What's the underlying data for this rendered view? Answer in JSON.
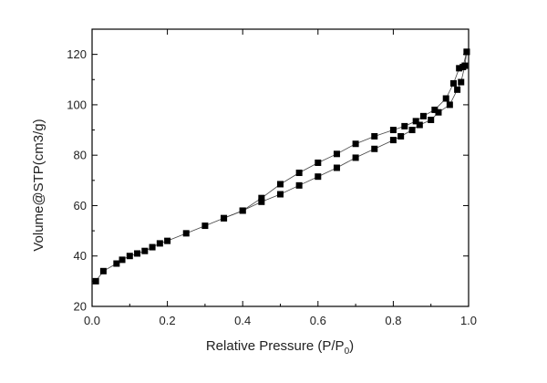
{
  "chart_data": {
    "type": "scatter",
    "title": "",
    "xlabel": "Relative Pressure (P/P0)",
    "xlabel_main": "Relative Pressure (P/P",
    "xlabel_sub": "0",
    "xlabel_close": ")",
    "ylabel": "Volume@STP(cm3/g)",
    "xlim": [
      0.0,
      1.0
    ],
    "ylim": [
      20,
      130
    ],
    "x_ticks": [
      "0.0",
      "0.2",
      "0.4",
      "0.6",
      "0.8",
      "1.0"
    ],
    "x_tick_values": [
      0.0,
      0.2,
      0.4,
      0.6,
      0.8,
      1.0
    ],
    "y_ticks": [
      "20",
      "40",
      "60",
      "80",
      "100",
      "120"
    ],
    "y_tick_values": [
      20,
      40,
      60,
      80,
      100,
      120
    ],
    "grid": false,
    "marker": "square",
    "series": [
      {
        "values": [
          {
            "x": 0.01,
            "y": 30.0
          },
          {
            "x": 0.03,
            "y": 34.0
          },
          {
            "x": 0.065,
            "y": 37.0
          },
          {
            "x": 0.08,
            "y": 38.5
          },
          {
            "x": 0.1,
            "y": 40.0
          },
          {
            "x": 0.12,
            "y": 41.0
          },
          {
            "x": 0.14,
            "y": 42.0
          },
          {
            "x": 0.16,
            "y": 43.5
          },
          {
            "x": 0.18,
            "y": 45.0
          },
          {
            "x": 0.2,
            "y": 46.0
          },
          {
            "x": 0.25,
            "y": 49.0
          },
          {
            "x": 0.3,
            "y": 52.0
          },
          {
            "x": 0.35,
            "y": 55.0
          },
          {
            "x": 0.4,
            "y": 58.0
          },
          {
            "x": 0.45,
            "y": 61.5
          },
          {
            "x": 0.5,
            "y": 64.5
          },
          {
            "x": 0.55,
            "y": 68.0
          },
          {
            "x": 0.6,
            "y": 71.5
          },
          {
            "x": 0.65,
            "y": 75.0
          },
          {
            "x": 0.7,
            "y": 79.0
          },
          {
            "x": 0.75,
            "y": 82.5
          },
          {
            "x": 0.8,
            "y": 86.0
          },
          {
            "x": 0.82,
            "y": 87.5
          },
          {
            "x": 0.85,
            "y": 90.0
          },
          {
            "x": 0.87,
            "y": 92.0
          },
          {
            "x": 0.9,
            "y": 94.0
          },
          {
            "x": 0.92,
            "y": 97.0
          },
          {
            "x": 0.95,
            "y": 100.0
          },
          {
            "x": 0.97,
            "y": 106.0
          },
          {
            "x": 0.98,
            "y": 109.0
          },
          {
            "x": 0.99,
            "y": 115.5
          },
          {
            "x": 0.995,
            "y": 121.0
          }
        ]
      },
      {
        "values": [
          {
            "x": 0.995,
            "y": 121.0
          },
          {
            "x": 0.985,
            "y": 115.0
          },
          {
            "x": 0.975,
            "y": 114.5
          },
          {
            "x": 0.96,
            "y": 108.5
          },
          {
            "x": 0.94,
            "y": 102.5
          },
          {
            "x": 0.91,
            "y": 98.0
          },
          {
            "x": 0.88,
            "y": 95.5
          },
          {
            "x": 0.86,
            "y": 93.5
          },
          {
            "x": 0.83,
            "y": 91.5
          },
          {
            "x": 0.8,
            "y": 90.0
          },
          {
            "x": 0.75,
            "y": 87.5
          },
          {
            "x": 0.7,
            "y": 84.5
          },
          {
            "x": 0.65,
            "y": 80.5
          },
          {
            "x": 0.6,
            "y": 77.0
          },
          {
            "x": 0.55,
            "y": 73.0
          },
          {
            "x": 0.5,
            "y": 68.5
          },
          {
            "x": 0.45,
            "y": 63.0
          },
          {
            "x": 0.4,
            "y": 58.0
          },
          {
            "x": 0.35,
            "y": 55.0
          }
        ]
      }
    ]
  }
}
